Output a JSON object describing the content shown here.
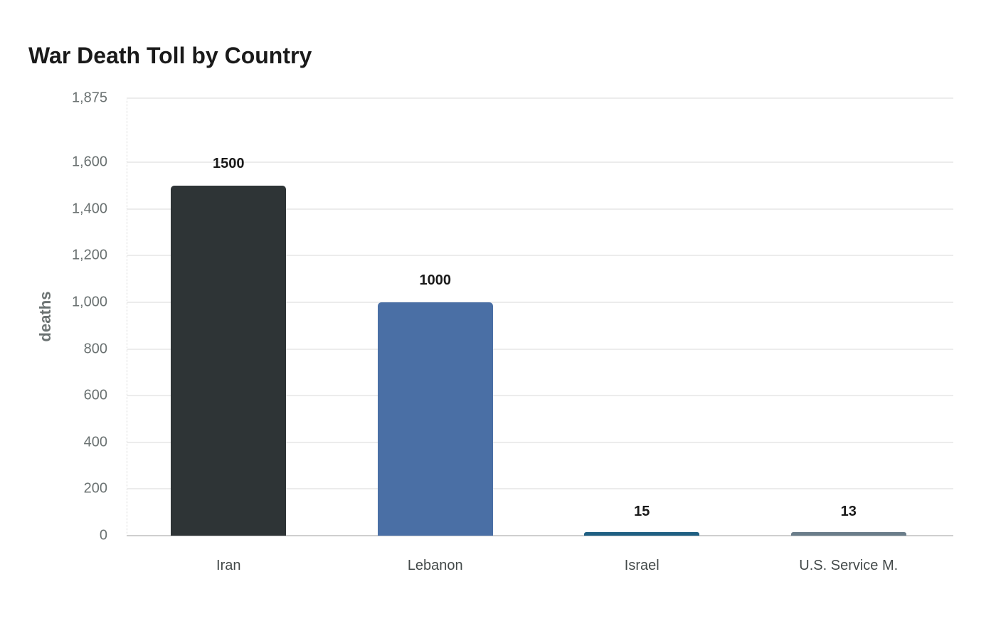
{
  "chart_data": {
    "type": "bar",
    "title": "War Death Toll by Country",
    "xlabel": "",
    "ylabel": "deaths",
    "categories": [
      "Iran",
      "Lebanon",
      "Israel",
      "U.S. Service M."
    ],
    "values": [
      1500,
      1000,
      15,
      13
    ],
    "value_labels": [
      "1500",
      "1000",
      "15",
      "13"
    ],
    "colors": [
      "#2e3436",
      "#4a6fa5",
      "#1f5f82",
      "#6a7d8a"
    ],
    "ylim": [
      0,
      1875
    ],
    "yticks": [
      0,
      200,
      400,
      600,
      800,
      1000,
      1200,
      1400,
      1600,
      1875
    ],
    "ytick_labels": [
      "0",
      "200",
      "400",
      "600",
      "800",
      "1,000",
      "1,200",
      "1,400",
      "1,600",
      "1,875"
    ],
    "grid": true,
    "legend": null
  }
}
